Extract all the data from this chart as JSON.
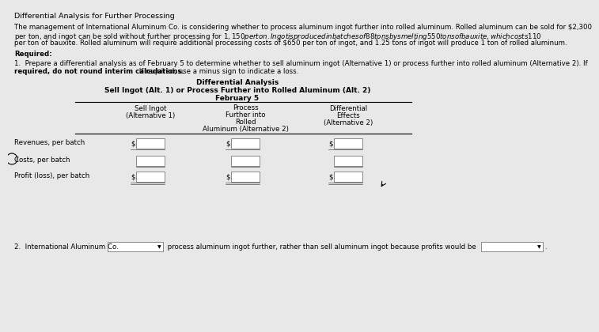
{
  "title": "Differential Analysis for Further Processing",
  "body_line1": "The management of International Aluminum Co. is considering whether to process aluminum ingot further into rolled aluminum. Rolled aluminum can be sold for $2,300",
  "body_line2": "per ton, and ingot can be sold without further processing for $1,150 per ton. Ingot is produced in batches of 88 tons by smelting 550 tons of bauxite, which costs $110",
  "body_line3": "per ton of bauxite. Rolled aluminum will require additional processing costs of $650 per ton of ingot, and 1.25 tons of ingot will produce 1 ton of rolled aluminum.",
  "required_label": "Required:",
  "req1_line1": "1.  Prepare a differential analysis as of February 5 to determine whether to sell aluminum ingot (Alternative 1) or process further into rolled aluminum (Alternative 2). If",
  "req1_line2": "required, do not round interim calculations.",
  "req1_line2b": " If required, use a minus sign to indicate a loss.",
  "diff_analysis_title": "Differential Analysis",
  "diff_analysis_subtitle": "Sell Ingot (Alt. 1) or Process Further into Rolled Aluminum (Alt. 2)",
  "diff_analysis_date": "February 5",
  "col1_header_line1": "Sell Ingot",
  "col1_header_line2": "(Alternative 1)",
  "col2_header_line1": "Process",
  "col2_header_line2": "Further into",
  "col2_header_line3": "Rolled",
  "col2_header_line4": "Aluminum (Alternative 2)",
  "col3_header_line1": "Differential",
  "col3_header_line2": "Effects",
  "col3_header_line3": "(Alternative 2)",
  "row1_label": "Revenues, per batch",
  "row2_label": "Costs, per batch",
  "row3_label": "Profit (loss), per batch",
  "req2_prefix": "2.  International Aluminum Co.",
  "req2_mid": " process aluminum ingot further, rather than sell aluminum ingot because profits would be",
  "bg_color": "#e8e8e8",
  "box_color": "#ffffff",
  "text_color": "#000000",
  "line_color": "#555555",
  "font_size_title": 6.8,
  "font_size_body": 6.2,
  "font_size_table": 6.2,
  "font_size_bold": 6.5
}
